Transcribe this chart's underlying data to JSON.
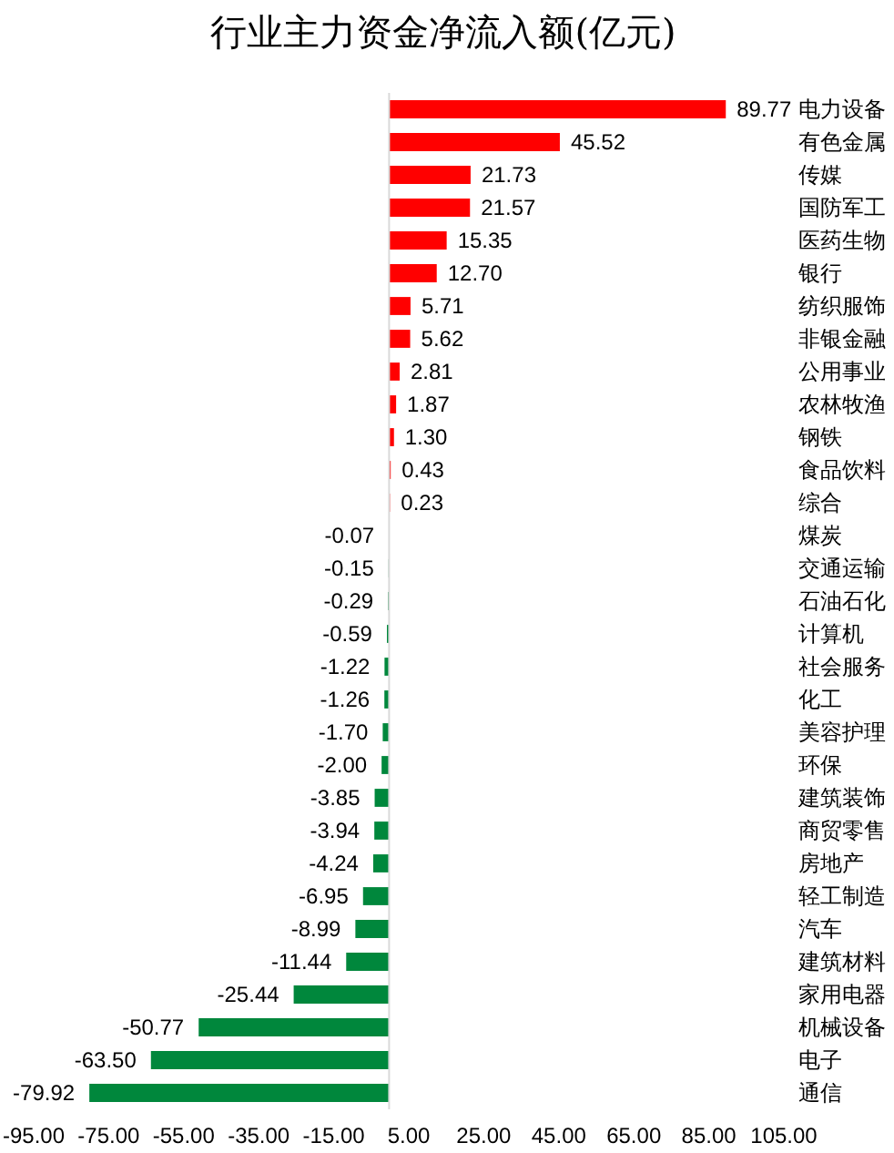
{
  "chart_data": {
    "type": "bar",
    "orientation": "horizontal",
    "title": "行业主力资金净流入额(亿元)",
    "categories": [
      "电力设备",
      "有色金属",
      "传媒",
      "国防军工",
      "医药生物",
      "银行",
      "纺织服饰",
      "非银金融",
      "公用事业",
      "农林牧渔",
      "钢铁",
      "食品饮料",
      "综合",
      "煤炭",
      "交通运输",
      "石油石化",
      "计算机",
      "社会服务",
      "化工",
      "美容护理",
      "环保",
      "建筑装饰",
      "商贸零售",
      "房地产",
      "轻工制造",
      "汽车",
      "建筑材料",
      "家用电器",
      "机械设备",
      "电子",
      "通信"
    ],
    "values": [
      89.77,
      45.52,
      21.73,
      21.57,
      15.35,
      12.7,
      5.71,
      5.62,
      2.81,
      1.87,
      1.3,
      0.43,
      0.23,
      -0.07,
      -0.15,
      -0.29,
      -0.59,
      -1.22,
      -1.26,
      -1.7,
      -2.0,
      -3.85,
      -3.94,
      -4.24,
      -6.95,
      -8.99,
      -11.44,
      -25.44,
      -50.77,
      -63.5,
      -79.92
    ],
    "colors": [
      "#ff0000",
      "#ff0000",
      "#ff0000",
      "#ff0000",
      "#ff0000",
      "#ff0000",
      "#ff0000",
      "#ff0000",
      "#ff0000",
      "#ff0000",
      "#ff0000",
      "#ff0000",
      "#ff0000",
      "#00873c",
      "#00873c",
      "#00873c",
      "#00873c",
      "#00873c",
      "#00873c",
      "#00873c",
      "#00873c",
      "#00873c",
      "#00873c",
      "#00873c",
      "#00873c",
      "#00873c",
      "#00873c",
      "#00873c",
      "#00873c",
      "#00873c",
      "#00873c"
    ],
    "value_labels": [
      "89.77",
      "45.52",
      "21.73",
      "21.57",
      "15.35",
      "12.70",
      "5.71",
      "5.62",
      "2.81",
      "1.87",
      "1.30",
      "0.43",
      "0.23",
      "-0.07",
      "-0.15",
      "-0.29",
      "-0.59",
      "-1.22",
      "-1.26",
      "-1.70",
      "-2.00",
      "-3.85",
      "-3.94",
      "-4.24",
      "-6.95",
      "-8.99",
      "-11.44",
      "-25.44",
      "-50.77",
      "-63.50",
      "-79.92"
    ],
    "xlim": [
      -95,
      105
    ],
    "xticks": [
      {
        "value": -95,
        "label": "-95.00"
      },
      {
        "value": -75,
        "label": "-75.00"
      },
      {
        "value": -55,
        "label": "-55.00"
      },
      {
        "value": -35,
        "label": "-35.00"
      },
      {
        "value": -15,
        "label": "-15.00"
      },
      {
        "value": 5,
        "label": "5.00"
      },
      {
        "value": 25,
        "label": "25.00"
      },
      {
        "value": 45,
        "label": "45.00"
      },
      {
        "value": 65,
        "label": "65.00"
      },
      {
        "value": 85,
        "label": "85.00"
      },
      {
        "value": 105,
        "label": "105.00"
      }
    ],
    "ref_lines": [
      {
        "axis": "x",
        "value": 0,
        "color": "#d9d9d9"
      }
    ]
  }
}
